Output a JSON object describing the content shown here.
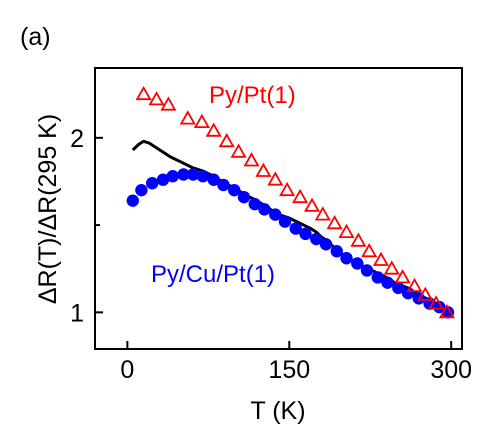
{
  "panel_label": "(a)",
  "chart_data": {
    "type": "scatter",
    "xlabel": "T (K)",
    "ylabel": "ΔR(T)/ΔR(295 K)",
    "xlim": [
      -30,
      310
    ],
    "ylim": [
      0.79,
      2.4
    ],
    "x_ticks": [
      0,
      150,
      300
    ],
    "x_tick_labels": [
      "0",
      "150",
      "300"
    ],
    "y_ticks": [
      1,
      2
    ],
    "y_tick_labels": [
      "1",
      "2"
    ],
    "y_minor_ticks": [
      1.5
    ],
    "grid": false,
    "legend": "none; series labeled inline",
    "series": [
      {
        "name": "Py/Pt(1)",
        "marker": "open-triangle",
        "color": "#ff0000",
        "x": [
          15,
          27,
          38,
          56,
          69,
          80,
          92,
          103,
          115,
          126,
          137,
          148,
          160,
          171,
          181,
          192,
          203,
          214,
          224,
          235,
          245,
          255,
          266,
          276,
          286,
          296
        ],
        "y": [
          2.25,
          2.22,
          2.19,
          2.11,
          2.09,
          2.04,
          1.98,
          1.92,
          1.87,
          1.81,
          1.76,
          1.7,
          1.66,
          1.61,
          1.56,
          1.51,
          1.46,
          1.41,
          1.35,
          1.3,
          1.25,
          1.2,
          1.15,
          1.1,
          1.05,
          1.0
        ]
      },
      {
        "name": "Py/Cu/Pt(1)",
        "marker": "filled-circle",
        "color": "#0000ff",
        "x": [
          5,
          13,
          23,
          33,
          42,
          52,
          61,
          70,
          80,
          89,
          99,
          108,
          118,
          127,
          137,
          146,
          156,
          165,
          175,
          184,
          194,
          203,
          213,
          222,
          232,
          241,
          251,
          260,
          270,
          280,
          289,
          297
        ],
        "y": [
          1.64,
          1.7,
          1.74,
          1.76,
          1.78,
          1.79,
          1.79,
          1.78,
          1.76,
          1.73,
          1.7,
          1.66,
          1.62,
          1.59,
          1.56,
          1.52,
          1.48,
          1.45,
          1.42,
          1.39,
          1.35,
          1.31,
          1.28,
          1.24,
          1.2,
          1.17,
          1.14,
          1.11,
          1.08,
          1.05,
          1.03,
          1.0
        ]
      },
      {
        "name": "",
        "marker": "line",
        "color": "#000000",
        "x": [
          5,
          10,
          15,
          20,
          25,
          30,
          40,
          50,
          60,
          70,
          80,
          90,
          100,
          110,
          120,
          130,
          140,
          150,
          160,
          170,
          175,
          180,
          185,
          190,
          200,
          210,
          220,
          230,
          240,
          250,
          260,
          270,
          280,
          290,
          297
        ],
        "y": [
          1.93,
          1.96,
          1.98,
          1.97,
          1.95,
          1.93,
          1.89,
          1.86,
          1.83,
          1.81,
          1.78,
          1.74,
          1.71,
          1.67,
          1.64,
          1.6,
          1.56,
          1.54,
          1.51,
          1.48,
          1.46,
          1.43,
          1.41,
          1.38,
          1.33,
          1.29,
          1.26,
          1.23,
          1.2,
          1.16,
          1.14,
          1.1,
          1.07,
          1.04,
          1.0
        ]
      }
    ]
  }
}
